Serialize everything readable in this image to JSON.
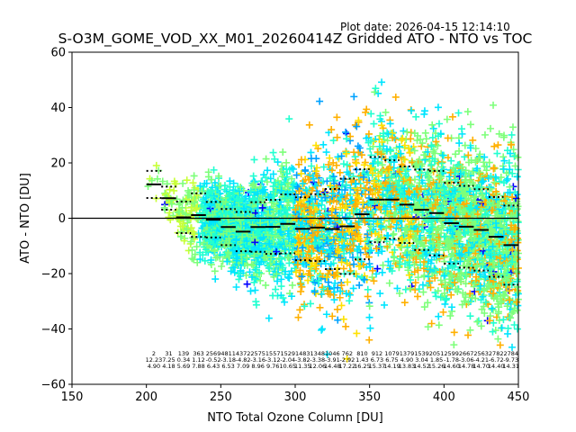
{
  "plot_date": "Plot date: 2026-04-15 12:14:10",
  "chart_data": {
    "type": "scatter",
    "title": "S-O3M_GOME_VOD_XX_M01_20260414Z Gridded ATO - NTO vs TOC",
    "xlabel": "NTO Total Ozone Column [DU]",
    "ylabel": "ATO - NTO [DU]",
    "xlim": [
      150,
      450
    ],
    "ylim": [
      -60,
      60
    ],
    "xticks": [
      150,
      200,
      250,
      300,
      350,
      400,
      450
    ],
    "yticks": [
      -60,
      -40,
      -20,
      0,
      20,
      40,
      60
    ],
    "grid": false,
    "reference_line_y": 0,
    "colors": [
      "#0000ff",
      "#00a2ff",
      "#00e5ff",
      "#22ffd0",
      "#7dff7a",
      "#c8ff38",
      "#ffe100",
      "#ffb000"
    ],
    "bins": {
      "bin_width": 10,
      "left_edges": [
        200,
        210,
        220,
        230,
        240,
        250,
        260,
        270,
        280,
        290,
        300,
        310,
        320,
        330,
        340,
        350,
        360,
        370,
        380,
        390,
        400,
        410,
        420,
        430,
        440
      ],
      "counts": [
        "2",
        "31",
        "139",
        "363",
        "2569",
        "4811",
        "4372",
        "2575",
        "1557",
        "1529",
        "1483",
        "1348",
        "1046",
        "762",
        "810",
        "912",
        "1079",
        "1379",
        "1539",
        "2051",
        "2599",
        "2667",
        "2563",
        "2782",
        "2784"
      ],
      "means": [
        12.23,
        7.25,
        0.34,
        1.12,
        -0.52,
        -3.18,
        -4.82,
        -3.16,
        -3.12,
        -2.04,
        -3.82,
        -3.38,
        -3.91,
        -2.92,
        1.43,
        6.73,
        6.75,
        4.9,
        3.04,
        1.85,
        -1.78,
        -3.06,
        -4.21,
        -6.72,
        -9.73
      ],
      "stds": [
        4.9,
        4.18,
        5.69,
        7.88,
        6.43,
        6.53,
        7.09,
        8.96,
        9.76,
        10.65,
        11.35,
        12.06,
        14.48,
        17.22,
        16.25,
        15.37,
        14.19,
        13.83,
        14.52,
        15.26,
        14.6,
        14.78,
        14.7,
        14.4,
        14.31
      ]
    },
    "annotation_rows": [
      "counts",
      "means",
      "stds"
    ]
  }
}
